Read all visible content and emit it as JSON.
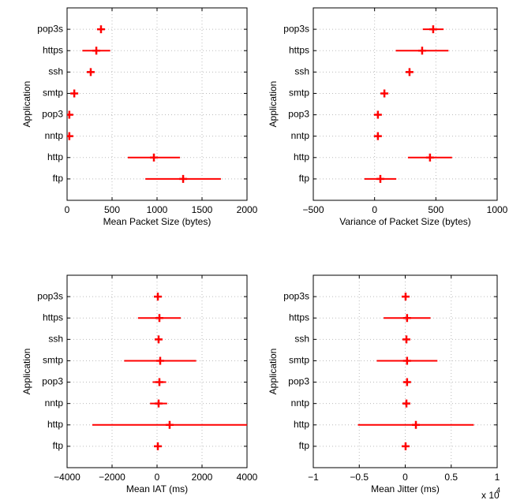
{
  "chart_data": [
    {
      "type": "errorbar",
      "xlabel": "Mean Packet Size (bytes)",
      "ylabel": "Application",
      "categories": [
        "ftp",
        "http",
        "nntp",
        "pop3",
        "smtp",
        "ssh",
        "https",
        "pop3s"
      ],
      "values": [
        1290,
        965,
        25,
        25,
        80,
        263,
        325,
        377
      ],
      "errors": [
        420,
        290,
        0,
        0,
        0,
        30,
        155,
        0
      ],
      "color": "#ff0000",
      "grid": true,
      "xlim": [
        0,
        2000
      ],
      "xticks": [
        0,
        500,
        1000,
        1500,
        2000
      ]
    },
    {
      "type": "errorbar",
      "xlabel": "Variance of Packet Size (bytes)",
      "ylabel": "Application",
      "categories": [
        "ftp",
        "http",
        "nntp",
        "pop3",
        "smtp",
        "ssh",
        "https",
        "pop3s"
      ],
      "values": [
        47,
        452,
        27,
        27,
        80,
        285,
        388,
        478
      ],
      "errors": [
        130,
        180,
        0,
        0,
        0,
        30,
        215,
        85
      ],
      "color": "#ff0000",
      "grid": true,
      "xlim": [
        -500,
        1000
      ],
      "xticks": [
        {
          "value": -500,
          "label": "−500"
        },
        0,
        500,
        1000
      ]
    },
    {
      "type": "errorbar",
      "xlabel": "Mean IAT (ms)",
      "ylabel": "Application",
      "categories": [
        "ftp",
        "http",
        "nntp",
        "pop3",
        "smtp",
        "ssh",
        "https",
        "pop3s"
      ],
      "values": [
        35,
        560,
        70,
        105,
        140,
        70,
        105,
        35
      ],
      "errors": [
        0,
        3440,
        380,
        300,
        1600,
        100,
        950,
        0
      ],
      "color": "#ff0000",
      "grid": true,
      "xlim": [
        -4000,
        4000
      ],
      "xticks": [
        {
          "value": -4000,
          "label": "−4000"
        },
        {
          "value": -2000,
          "label": "−2000"
        },
        0,
        2000,
        4000
      ]
    },
    {
      "type": "errorbar",
      "xlabel": "Mean Jitter (ms)",
      "ylabel": "Application",
      "categories": [
        "ftp",
        "http",
        "nntp",
        "pop3",
        "smtp",
        "ssh",
        "https",
        "pop3s"
      ],
      "values": [
        40,
        1160,
        130,
        200,
        200,
        130,
        200,
        40
      ],
      "errors": [
        0,
        6300,
        400,
        400,
        3300,
        0,
        2550,
        0
      ],
      "color": "#ff0000",
      "grid": true,
      "xlim": [
        -10000,
        10000
      ],
      "xticks": [
        {
          "value": -10000,
          "label": "−1"
        },
        {
          "value": -5000,
          "label": "−0.5"
        },
        {
          "value": 0,
          "label": "0"
        },
        {
          "value": 5000,
          "label": "0.5"
        },
        {
          "value": 10000,
          "label": "1"
        }
      ],
      "x_multiplier": {
        "base": "x 10",
        "exponent": "4"
      }
    }
  ]
}
